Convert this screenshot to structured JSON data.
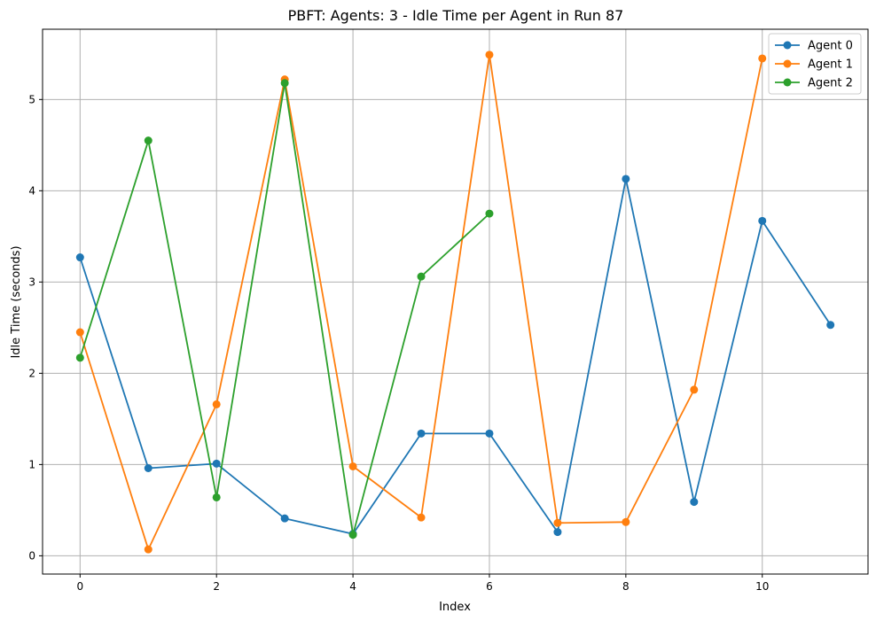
{
  "chart_data": {
    "type": "line",
    "title": "PBFT: Agents: 3 - Idle Time per Agent in Run 87",
    "xlabel": "Index",
    "ylabel": "Idle Time (seconds)",
    "xlim": [
      -0.55,
      11.55
    ],
    "ylim": [
      -0.2,
      5.77
    ],
    "xticks": [
      0,
      2,
      4,
      6,
      8,
      10
    ],
    "yticks": [
      0,
      1,
      2,
      3,
      4,
      5
    ],
    "grid": true,
    "legend_position": "top-right",
    "series": [
      {
        "name": "Agent 0",
        "color": "#1f77b4",
        "x": [
          0,
          1,
          2,
          3,
          4,
          5,
          6,
          7,
          8,
          9,
          10,
          11
        ],
        "values": [
          3.27,
          0.96,
          1.01,
          0.41,
          0.24,
          1.34,
          1.34,
          0.26,
          4.13,
          0.59,
          3.67,
          2.53
        ]
      },
      {
        "name": "Agent 1",
        "color": "#ff7f0e",
        "x": [
          0,
          1,
          2,
          3,
          4,
          5,
          6,
          7,
          8,
          9,
          10
        ],
        "values": [
          2.45,
          0.07,
          1.66,
          5.22,
          0.98,
          0.42,
          5.49,
          0.36,
          0.37,
          1.82,
          5.45
        ]
      },
      {
        "name": "Agent 2",
        "color": "#2ca02c",
        "x": [
          0,
          1,
          2,
          3,
          4,
          5,
          6
        ],
        "values": [
          2.17,
          4.55,
          0.64,
          5.18,
          0.23,
          3.06,
          3.75
        ]
      }
    ]
  }
}
